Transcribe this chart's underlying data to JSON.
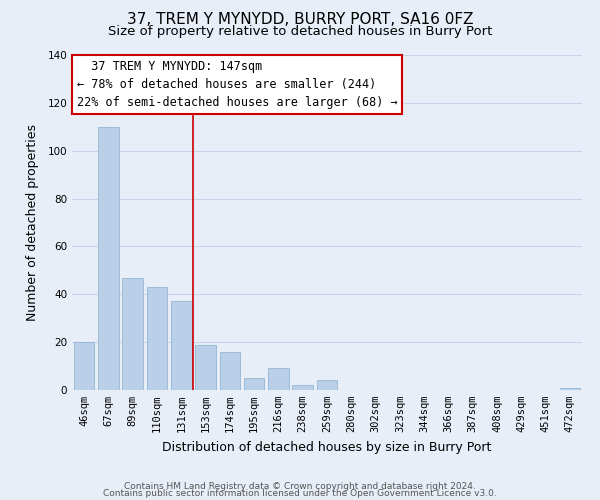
{
  "title": "37, TREM Y MYNYDD, BURRY PORT, SA16 0FZ",
  "subtitle": "Size of property relative to detached houses in Burry Port",
  "xlabel": "Distribution of detached houses by size in Burry Port",
  "ylabel": "Number of detached properties",
  "bar_labels": [
    "46sqm",
    "67sqm",
    "89sqm",
    "110sqm",
    "131sqm",
    "153sqm",
    "174sqm",
    "195sqm",
    "216sqm",
    "238sqm",
    "259sqm",
    "280sqm",
    "302sqm",
    "323sqm",
    "344sqm",
    "366sqm",
    "387sqm",
    "408sqm",
    "429sqm",
    "451sqm",
    "472sqm"
  ],
  "bar_heights": [
    20,
    110,
    47,
    43,
    37,
    19,
    16,
    5,
    9,
    2,
    4,
    0,
    0,
    0,
    0,
    0,
    0,
    0,
    0,
    0,
    1
  ],
  "bar_color": "#bad0e8",
  "vline_x": 4.5,
  "annotation_line1": "  37 TREM Y MYNYDD: 147sqm",
  "annotation_line2": "← 78% of detached houses are smaller (244)",
  "annotation_line3": "22% of semi-detached houses are larger (68) →",
  "ylim": [
    0,
    140
  ],
  "yticks": [
    0,
    20,
    40,
    60,
    80,
    100,
    120,
    140
  ],
  "footer_line1": "Contains HM Land Registry data © Crown copyright and database right 2024.",
  "footer_line2": "Contains public sector information licensed under the Open Government Licence v3.0.",
  "bg_color": "#e8eef8",
  "plot_bg_color": "#e8eef8",
  "grid_color": "#c8d4e8",
  "annotation_box_color": "#ffffff",
  "annotation_box_edge": "#cc0000",
  "vline_color": "#cc0000",
  "title_fontsize": 11,
  "subtitle_fontsize": 9.5,
  "axis_label_fontsize": 9,
  "tick_fontsize": 7.5,
  "annotation_fontsize": 8.5,
  "footer_fontsize": 6.5
}
